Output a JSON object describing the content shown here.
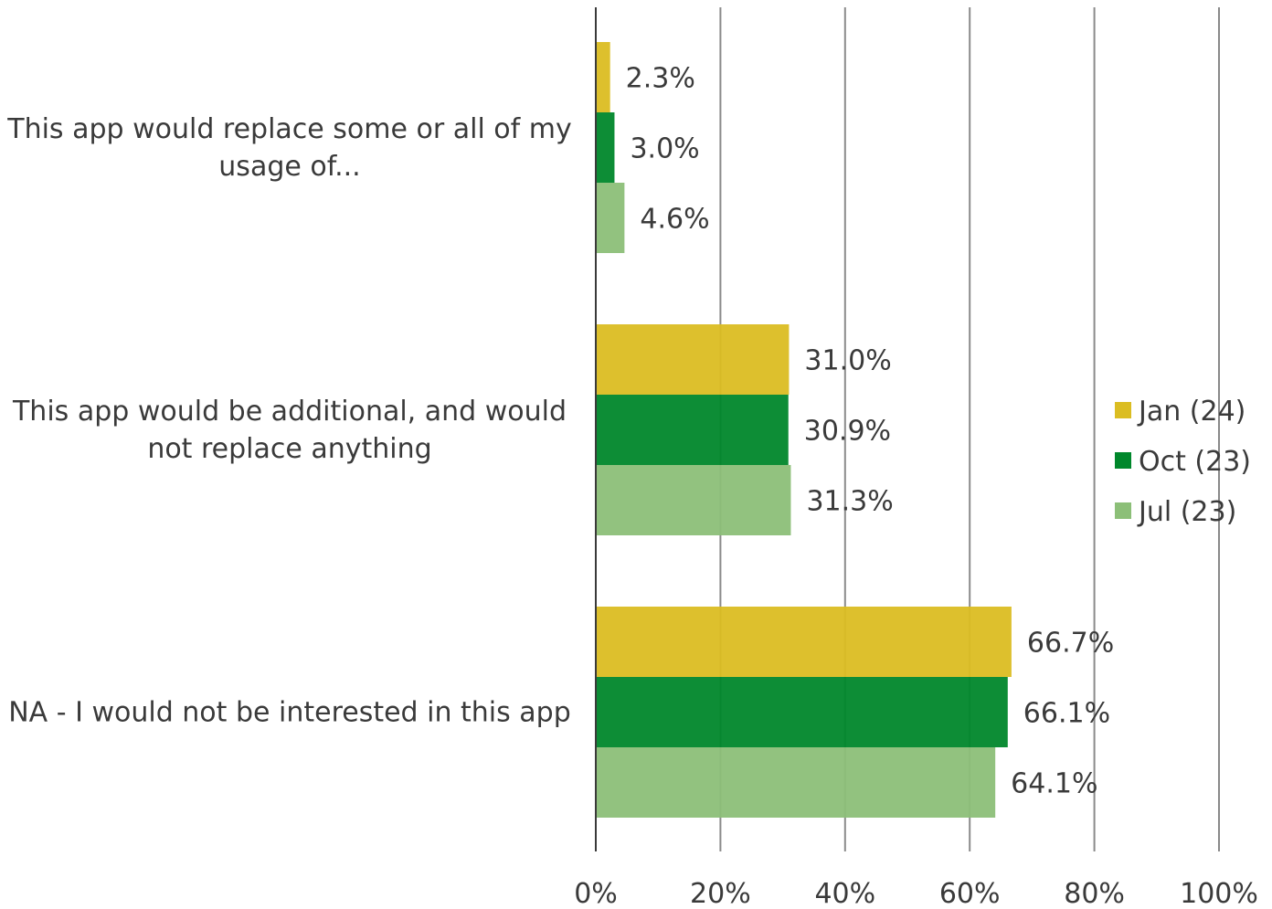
{
  "chart_data": {
    "type": "bar",
    "orientation": "horizontal",
    "categories": [
      "This app would replace some or all of my usage of...",
      "This app would be additional, and would not replace anything",
      "NA - I would not be interested in this app"
    ],
    "category_lines": [
      [
        "This app would replace some or all of my",
        "usage of..."
      ],
      [
        "This app would be additional, and would",
        "not replace anything"
      ],
      [
        "NA - I would not be interested in this app"
      ]
    ],
    "series": [
      {
        "name": "Jan (24)",
        "color": "#dbbd22",
        "values": [
          2.3,
          31.0,
          66.7
        ],
        "labels": [
          "2.3%",
          "31.0%",
          "66.7%"
        ]
      },
      {
        "name": "Oct (23)",
        "color": "#00872b",
        "values": [
          3.0,
          30.9,
          66.1
        ],
        "labels": [
          "3.0%",
          "30.9%",
          "66.1%"
        ]
      },
      {
        "name": "Jul (23)",
        "color": "#8cbf78",
        "values": [
          4.6,
          31.3,
          64.1
        ],
        "labels": [
          "4.6%",
          "31.3%",
          "64.1%"
        ]
      }
    ],
    "xlim": [
      0,
      100
    ],
    "xticks": [
      0,
      20,
      40,
      60,
      80,
      100
    ],
    "xtick_labels": [
      "0%",
      "20%",
      "40%",
      "60%",
      "80%",
      "100%"
    ],
    "grid": true,
    "legend": "right",
    "title": "",
    "xlabel": "",
    "ylabel": ""
  }
}
